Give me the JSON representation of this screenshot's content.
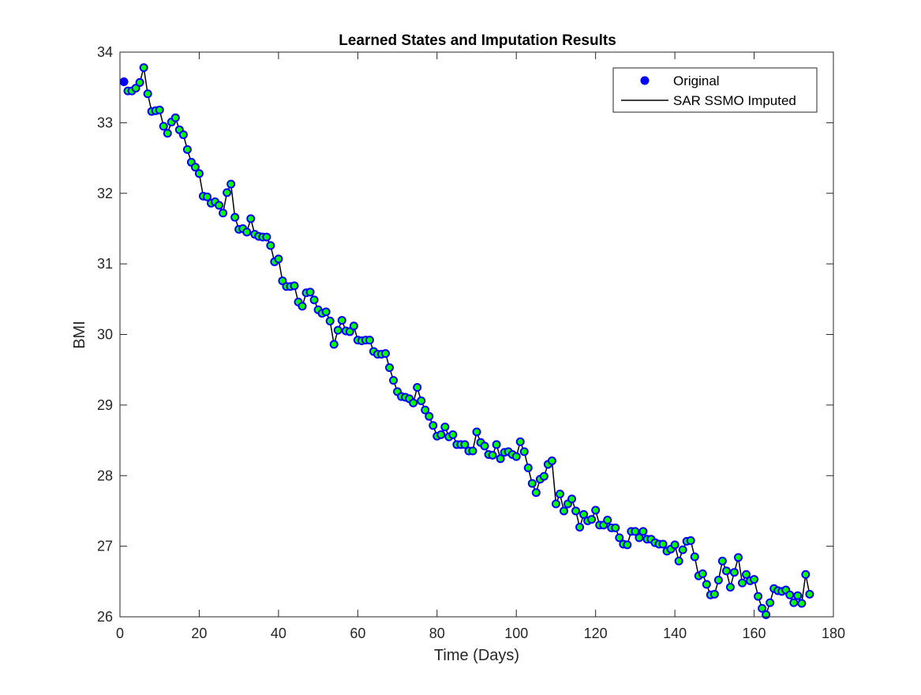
{
  "chart_data": {
    "type": "line",
    "title": "Learned States and Imputation Results",
    "xlabel": "Time (Days)",
    "ylabel": "BMI",
    "xlim": [
      0,
      180
    ],
    "ylim": [
      26,
      34
    ],
    "x_ticks": [
      "0",
      "20",
      "40",
      "60",
      "80",
      "100",
      "120",
      "140",
      "160",
      "180"
    ],
    "y_ticks": [
      "26",
      "27",
      "28",
      "29",
      "30",
      "31",
      "32",
      "33",
      "34"
    ],
    "grid": false,
    "legend_position": "top-right",
    "series": [
      {
        "name": "Original",
        "style": "markers",
        "color": "#0000ff",
        "x": [
          1
        ],
        "values": [
          33.58
        ]
      },
      {
        "name": "SAR SSMO Imputed",
        "style": "line-with-markers",
        "color": "#000000",
        "marker_fill": "#00ff00",
        "marker_edge": "#0000ff",
        "x": [
          2,
          3,
          4,
          5,
          6,
          7,
          8,
          9,
          10,
          11,
          12,
          13,
          14,
          15,
          16,
          17,
          18,
          19,
          20,
          21,
          22,
          23,
          24,
          25,
          26,
          27,
          28,
          29,
          30,
          31,
          32,
          33,
          34,
          35,
          36,
          37,
          38,
          39,
          40,
          41,
          42,
          43,
          44,
          45,
          46,
          47,
          48,
          49,
          50,
          51,
          52,
          53,
          54,
          55,
          56,
          57,
          58,
          59,
          60,
          61,
          62,
          63,
          64,
          65,
          66,
          67,
          68,
          69,
          70,
          71,
          72,
          73,
          74,
          75,
          76,
          77,
          78,
          79,
          80,
          81,
          82,
          83,
          84,
          85,
          86,
          87,
          88,
          89,
          90,
          91,
          92,
          93,
          94,
          95,
          96,
          97,
          98,
          99,
          100,
          101,
          102,
          103,
          104,
          105,
          106,
          107,
          108,
          109,
          110,
          111,
          112,
          113,
          114,
          115,
          116,
          117,
          118,
          119,
          120,
          121,
          122,
          123,
          124,
          125,
          126,
          127,
          128,
          129,
          130,
          131,
          132,
          133,
          134,
          135,
          136,
          137,
          138,
          139,
          140,
          141,
          142,
          143,
          144,
          145,
          146,
          147,
          148,
          149,
          150,
          151,
          152,
          153,
          154,
          155,
          156,
          157,
          158,
          159,
          160,
          161,
          162,
          163,
          164,
          165,
          166,
          167,
          168,
          169,
          170,
          171,
          172,
          173,
          174
        ],
        "values": [
          33.45,
          33.45,
          33.49,
          33.57,
          33.78,
          33.41,
          33.16,
          33.17,
          33.18,
          32.95,
          32.85,
          33.01,
          33.07,
          32.9,
          32.83,
          32.62,
          32.44,
          32.37,
          32.28,
          31.96,
          31.95,
          31.86,
          31.88,
          31.83,
          31.72,
          32.01,
          32.13,
          31.66,
          31.49,
          31.5,
          31.45,
          31.64,
          31.42,
          31.39,
          31.38,
          31.38,
          31.26,
          31.03,
          31.07,
          30.76,
          30.68,
          30.68,
          30.69,
          30.46,
          30.4,
          30.59,
          30.6,
          30.49,
          30.35,
          30.3,
          30.32,
          30.19,
          29.86,
          30.06,
          30.2,
          30.05,
          30.04,
          30.12,
          29.92,
          29.91,
          29.92,
          29.92,
          29.76,
          29.72,
          29.72,
          29.73,
          29.53,
          29.35,
          29.19,
          29.12,
          29.11,
          29.09,
          29.03,
          29.25,
          29.06,
          28.93,
          28.84,
          28.71,
          28.56,
          28.58,
          28.69,
          28.55,
          28.58,
          28.44,
          28.44,
          28.44,
          28.35,
          28.35,
          28.62,
          28.47,
          28.42,
          28.3,
          28.29,
          28.44,
          28.24,
          28.33,
          28.34,
          28.3,
          28.27,
          28.48,
          28.34,
          28.11,
          27.89,
          27.76,
          27.95,
          27.99,
          28.16,
          28.21,
          27.6,
          27.74,
          27.5,
          27.6,
          27.67,
          27.5,
          27.27,
          27.45,
          27.36,
          27.38,
          27.51,
          27.3,
          27.3,
          27.37,
          27.26,
          27.26,
          27.12,
          27.03,
          27.02,
          27.21,
          27.21,
          27.12,
          27.21,
          27.1,
          27.1,
          27.05,
          27.03,
          27.03,
          26.93,
          26.96,
          27.02,
          26.79,
          26.95,
          27.07,
          27.08,
          26.85,
          26.58,
          26.61,
          26.46,
          26.31,
          26.32,
          26.52,
          26.79,
          26.65,
          26.42,
          26.63,
          26.84,
          26.48,
          26.6,
          26.51,
          26.53,
          26.29,
          26.12,
          26.03,
          26.2,
          26.4,
          26.37,
          26.36,
          26.38,
          26.31,
          26.2,
          26.3,
          26.19,
          26.6,
          26.32
        ]
      }
    ]
  }
}
